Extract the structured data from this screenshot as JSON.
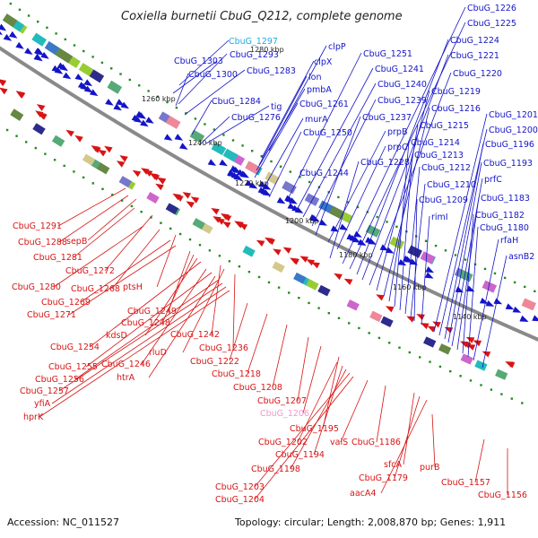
{
  "map": {
    "title": "Coxiella burnetii CbuG_Q212, complete genome",
    "accession": "Accession: NC_011527",
    "summary": "Topology: circular; Length: 2,008,870 bp; Genes: 1,911",
    "tick_labels": [
      "1280 kbp",
      "1260 kbp",
      "1240 kbp",
      "1220 kbp",
      "1200 kbp",
      "1180 kbp",
      "1160 kbp",
      "1140 kbp"
    ],
    "gene_labels_forward": [
      "CbuG_1297",
      "CbuG_1303",
      "CbuG_1293",
      "CbuG_1300",
      "CbuG_1283",
      "CbuG_1284",
      "tig",
      "CbuG_1276",
      "clpP",
      "clpX",
      "lon",
      "pmbA",
      "CbuG_1261",
      "murA",
      "CbuG_1250",
      "CbuG_1244",
      "CbuG_1251",
      "CbuG_1241",
      "CbuG_1240",
      "CbuG_1239",
      "CbuG_1237",
      "prpB",
      "prpC",
      "CbuG_1228",
      "CbuG_1226",
      "CbuG_1225",
      "CbuG_1224",
      "CbuG_1221",
      "CbuG_1220",
      "CbuG_1219",
      "CbuG_1216",
      "CbuG_1215",
      "CbuG_1214",
      "CbuG_1213",
      "CbuG_1212",
      "CbuG_1210",
      "CbuG_1209",
      "rimI",
      "CbuG_1201",
      "CbuG_1200",
      "CbuG_1196",
      "CbuG_1193",
      "prfC",
      "CbuG_1183",
      "CbuG_1182",
      "CbuG_1180",
      "rfaH",
      "asnB2"
    ],
    "gene_labels_reverse": [
      "CbuG_1291",
      "CbuG_1288",
      "sepB",
      "CbuG_1281",
      "CbuG_1272",
      "CbuG_1280",
      "CbuG_1268",
      "ptsH",
      "CbuG_1269",
      "CbuG_1271",
      "CbuG_1249",
      "CbuG_1248",
      "kdsD",
      "CbuG_1254",
      "CbuG_1242",
      "rluD",
      "CbuG_1236",
      "CbuG_1246",
      "CbuG_1255",
      "htrA",
      "CbuG_1256",
      "CbuG_1257",
      "yfiA",
      "hprK",
      "CbuG_1222",
      "CbuG_1218",
      "CbuG_1208",
      "CbuG_1207",
      "CbuG_1206",
      "CbuG_1195",
      "CbuG_1202",
      "CbuG_1194",
      "CbuG_1198",
      "CbuG_1203",
      "CbuG_1204",
      "valS",
      "CbuG_1186",
      "sfcA",
      "CbuG_1179",
      "aacA4",
      "purB",
      "CbuG_1157",
      "CbuG_1156"
    ]
  },
  "colors": {
    "forward": "#1414c8",
    "reverse": "#d81414",
    "highlight_forward": "#22aadd",
    "highlight_reverse": "#ee99cc",
    "backbone": "#8a8a8a",
    "tick_dot": "#228b22"
  }
}
